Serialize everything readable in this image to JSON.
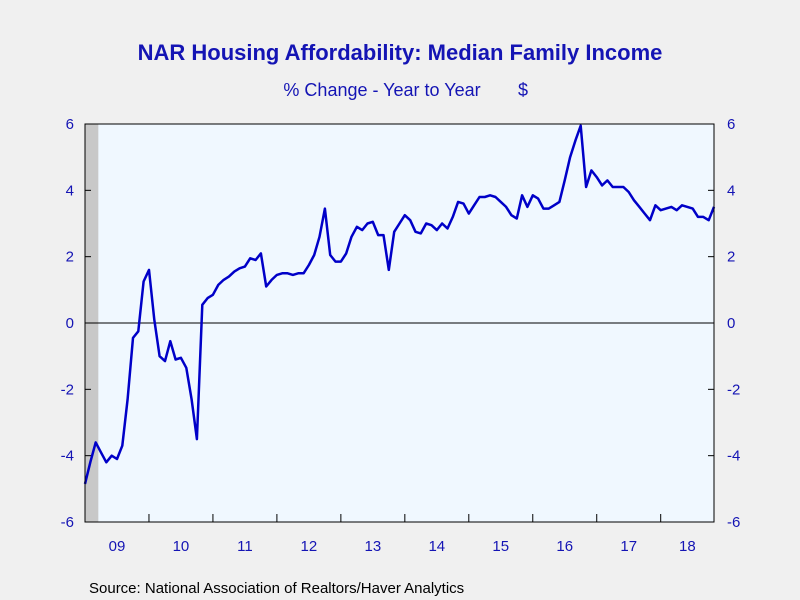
{
  "chart_data": {
    "type": "line",
    "title": "NAR Housing Affordability: Median Family Income",
    "subtitle": "% Change - Year to Year",
    "unit": "$",
    "source": "Source:  National Association of Realtors/Haver Analytics",
    "ylim": [
      -6,
      6
    ],
    "y_ticks": [
      6,
      4,
      2,
      0,
      -2,
      -4,
      -6
    ],
    "y_tick_labels": [
      "6",
      "4",
      "2",
      "0",
      "-2",
      "-4",
      "-6"
    ],
    "xlim": [
      2009.0,
      2018.8333
    ],
    "x_tick_labels": [
      "09",
      "10",
      "11",
      "12",
      "13",
      "14",
      "15",
      "16",
      "17",
      "18"
    ],
    "x_tick_label_positions": [
      2009.0,
      2010.0,
      2011.0,
      2012.0,
      2013.0,
      2014.0,
      2015.0,
      2016.0,
      2017.0,
      2018.0
    ],
    "recession_shade": [
      2009.0,
      2009.2083
    ],
    "zero_line": true,
    "colors": {
      "line": "#0000c8",
      "text": "#1414b4",
      "plot_bg": "#f0f8ff",
      "recession": "#c8c8c8",
      "page_bg": "#f0f0f0"
    },
    "series": [
      {
        "x": [
          2009.0,
          2009.0833,
          2009.1667,
          2009.25,
          2009.3333,
          2009.4167,
          2009.5,
          2009.5833,
          2009.6667,
          2009.75,
          2009.8333,
          2009.9167,
          2010.0,
          2010.0833,
          2010.1667,
          2010.25,
          2010.3333,
          2010.4167,
          2010.5,
          2010.5833,
          2010.6667,
          2010.75,
          2010.8333,
          2010.9167,
          2011.0,
          2011.0833,
          2011.1667,
          2011.25,
          2011.3333,
          2011.4167,
          2011.5,
          2011.5833,
          2011.6667,
          2011.75,
          2011.8333,
          2011.9167,
          2012.0,
          2012.0833,
          2012.1667,
          2012.25,
          2012.3333,
          2012.4167,
          2012.5,
          2012.5833,
          2012.6667,
          2012.75,
          2012.8333,
          2012.9167,
          2013.0,
          2013.0833,
          2013.1667,
          2013.25,
          2013.3333,
          2013.4167,
          2013.5,
          2013.5833,
          2013.6667,
          2013.75,
          2013.8333,
          2013.9167,
          2014.0,
          2014.0833,
          2014.1667,
          2014.25,
          2014.3333,
          2014.4167,
          2014.5,
          2014.5833,
          2014.6667,
          2014.75,
          2014.8333,
          2014.9167,
          2015.0,
          2015.0833,
          2015.1667,
          2015.25,
          2015.3333,
          2015.4167,
          2015.5,
          2015.5833,
          2015.6667,
          2015.75,
          2015.8333,
          2015.9167,
          2016.0,
          2016.0833,
          2016.1667,
          2016.25,
          2016.3333,
          2016.4167,
          2016.5,
          2016.5833,
          2016.6667,
          2016.75,
          2016.8333,
          2016.9167,
          2017.0,
          2017.0833,
          2017.1667,
          2017.25,
          2017.3333,
          2017.4167,
          2017.5,
          2017.5833,
          2017.6667,
          2017.75,
          2017.8333,
          2017.9167,
          2018.0,
          2018.0833,
          2018.1667,
          2018.25,
          2018.3333,
          2018.4167,
          2018.5,
          2018.5833,
          2018.6667,
          2018.75,
          2018.8333
        ],
        "values": [
          -4.85,
          -4.2,
          -3.6,
          -3.9,
          -4.2,
          -4.0,
          -4.1,
          -3.7,
          -2.3,
          -0.45,
          -0.25,
          1.25,
          1.6,
          0.1,
          -1.0,
          -1.15,
          -0.55,
          -1.1,
          -1.05,
          -1.35,
          -2.3,
          -3.5,
          0.55,
          0.75,
          0.85,
          1.15,
          1.3,
          1.4,
          1.55,
          1.65,
          1.7,
          1.95,
          1.9,
          2.1,
          1.1,
          1.3,
          1.45,
          1.5,
          1.5,
          1.45,
          1.5,
          1.5,
          1.75,
          2.05,
          2.6,
          3.45,
          2.05,
          1.85,
          1.85,
          2.1,
          2.6,
          2.9,
          2.8,
          3.0,
          3.05,
          2.65,
          2.65,
          1.6,
          2.75,
          3.0,
          3.25,
          3.1,
          2.75,
          2.7,
          3.0,
          2.95,
          2.8,
          3.0,
          2.85,
          3.2,
          3.65,
          3.6,
          3.3,
          3.55,
          3.8,
          3.8,
          3.85,
          3.8,
          3.65,
          3.5,
          3.25,
          3.15,
          3.85,
          3.5,
          3.85,
          3.75,
          3.45,
          3.45,
          3.55,
          3.65,
          4.3,
          5.0,
          5.5,
          5.95,
          4.1,
          4.6,
          4.4,
          4.15,
          4.3,
          4.1,
          4.1,
          4.1,
          3.95,
          3.7,
          3.5,
          3.3,
          3.1,
          3.55,
          3.4,
          3.45,
          3.5,
          3.4,
          3.55,
          3.5,
          3.45,
          3.2,
          3.2,
          3.1,
          3.5
        ]
      }
    ]
  }
}
